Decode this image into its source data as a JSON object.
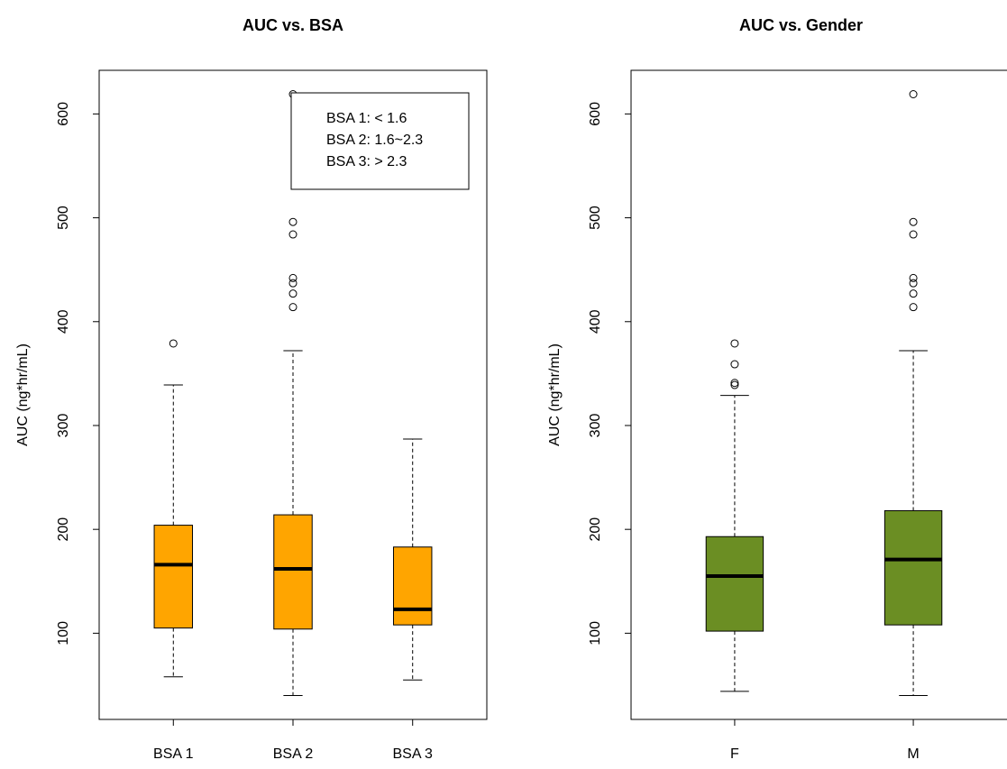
{
  "chart_data": [
    {
      "type": "box",
      "title": "AUC vs. BSA",
      "ylabel": "AUC (ng*hr/mL)",
      "categories": [
        "BSA 1",
        "BSA 2",
        "BSA 3"
      ],
      "color": "#ffa500",
      "boxes": [
        {
          "min": 58,
          "q1": 105,
          "median": 166,
          "q3": 204,
          "max": 339,
          "outliers": [
            379
          ]
        },
        {
          "min": 40,
          "q1": 104,
          "median": 162,
          "q3": 214,
          "max": 372,
          "outliers": [
            619,
            496,
            484,
            442,
            437,
            427,
            414
          ]
        },
        {
          "min": 55,
          "q1": 108,
          "median": 123,
          "q3": 183,
          "max": 287,
          "outliers": []
        }
      ],
      "ylim": [
        17,
        642
      ],
      "yticks": [
        100,
        200,
        300,
        400,
        500,
        600
      ],
      "legend_text": [
        "BSA 1: < 1.6",
        "BSA 2: 1.6~2.3",
        "BSA 3: > 2.3"
      ]
    },
    {
      "type": "box",
      "title": "AUC vs. Gender",
      "ylabel": "AUC (ng*hr/mL)",
      "categories": [
        "F",
        "M"
      ],
      "color": "#6b8e23",
      "boxes": [
        {
          "min": 44,
          "q1": 102,
          "median": 155,
          "q3": 193,
          "max": 329,
          "outliers": [
            379,
            359,
            341,
            339
          ]
        },
        {
          "min": 40,
          "q1": 108,
          "median": 171,
          "q3": 218,
          "max": 372,
          "outliers": [
            619,
            496,
            484,
            442,
            437,
            427,
            414
          ]
        }
      ],
      "ylim": [
        17,
        642
      ],
      "yticks": [
        100,
        200,
        300,
        400,
        500,
        600
      ]
    }
  ]
}
